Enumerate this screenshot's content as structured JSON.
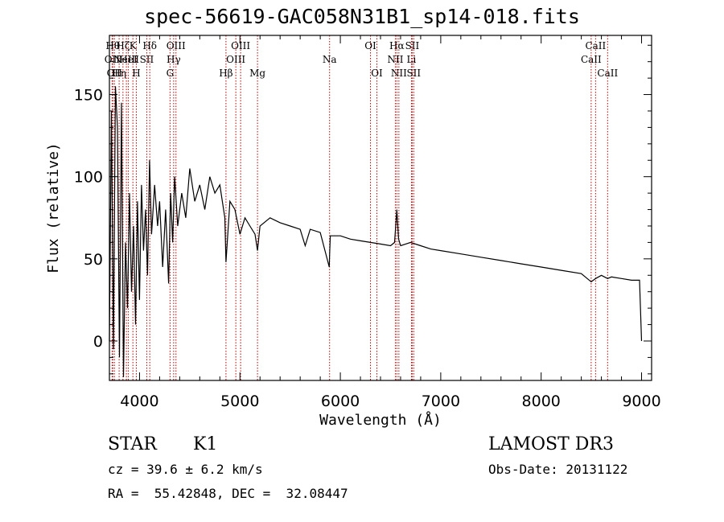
{
  "chart_data": {
    "type": "line",
    "title": "spec-56619-GAC058N31B1_sp14-018.fits",
    "xlabel": "Wavelength (Å)",
    "ylabel": "Flux (relative)",
    "xlim": [
      3700,
      9100
    ],
    "ylim": [
      -24,
      186
    ],
    "x_ticks": [
      4000,
      5000,
      6000,
      7000,
      8000,
      9000
    ],
    "y_ticks": [
      0,
      50,
      100,
      150
    ],
    "grid": false,
    "series": [
      {
        "name": "spectrum",
        "x": [
          3700,
          3720,
          3740,
          3760,
          3780,
          3800,
          3820,
          3840,
          3860,
          3880,
          3900,
          3920,
          3940,
          3960,
          3980,
          4000,
          4020,
          4040,
          4060,
          4080,
          4100,
          4120,
          4150,
          4180,
          4200,
          4230,
          4260,
          4290,
          4310,
          4330,
          4350,
          4380,
          4420,
          4460,
          4500,
          4550,
          4600,
          4650,
          4700,
          4750,
          4800,
          4850,
          4861,
          4900,
          4950,
          5000,
          5050,
          5100,
          5150,
          5175,
          5200,
          5300,
          5400,
          5500,
          5600,
          5650,
          5700,
          5800,
          5890,
          5893,
          5900,
          6000,
          6100,
          6200,
          6300,
          6400,
          6500,
          6540,
          6563,
          6580,
          6600,
          6700,
          6800,
          6900,
          7000,
          7200,
          7400,
          7600,
          7800,
          8000,
          8200,
          8400,
          8498,
          8542,
          8600,
          8662,
          8700,
          8800,
          8900,
          8980,
          9000
        ],
        "values": [
          0,
          140,
          -5,
          155,
          130,
          -10,
          145,
          -22,
          60,
          20,
          90,
          30,
          70,
          10,
          85,
          25,
          95,
          55,
          80,
          40,
          110,
          65,
          95,
          70,
          85,
          45,
          80,
          35,
          90,
          60,
          100,
          70,
          90,
          75,
          105,
          85,
          95,
          80,
          100,
          90,
          95,
          75,
          48,
          85,
          80,
          65,
          75,
          70,
          65,
          55,
          70,
          75,
          72,
          70,
          68,
          58,
          68,
          66,
          45,
          52,
          64,
          64,
          62,
          61,
          60,
          59,
          58,
          60,
          80,
          62,
          58,
          60,
          58,
          56,
          55,
          53,
          51,
          49,
          47,
          45,
          43,
          41,
          36,
          38,
          40,
          38,
          39,
          38,
          37,
          37,
          0
        ]
      }
    ],
    "lines": [
      {
        "wl": 3727,
        "label": "OII",
        "tier": 1
      },
      {
        "wl": 3734,
        "label": "Hθ",
        "tier": 0
      },
      {
        "wl": 3750,
        "label": "OII",
        "tier": 2
      },
      {
        "wl": 3797,
        "label": "Hη",
        "tier": 2
      },
      {
        "wl": 3835,
        "label": "Hζ",
        "tier": 0
      },
      {
        "wl": 3869,
        "label": "NeIII",
        "tier": 1
      },
      {
        "wl": 3889,
        "label": "HeI",
        "tier": 1
      },
      {
        "wl": 3934,
        "label": "K",
        "tier": 0
      },
      {
        "wl": 3968,
        "label": "H",
        "tier": 2
      },
      {
        "wl": 4072,
        "label": "SII",
        "tier": 1
      },
      {
        "wl": 4102,
        "label": "Hδ",
        "tier": 0
      },
      {
        "wl": 4304,
        "label": "G",
        "tier": 2
      },
      {
        "wl": 4340,
        "label": "Hγ",
        "tier": 1
      },
      {
        "wl": 4363,
        "label": "OIII",
        "tier": 0
      },
      {
        "wl": 4861,
        "label": "Hβ",
        "tier": 2
      },
      {
        "wl": 4959,
        "label": "OIII",
        "tier": 1
      },
      {
        "wl": 5007,
        "label": "OIII",
        "tier": 0
      },
      {
        "wl": 5175,
        "label": "Mg",
        "tier": 2
      },
      {
        "wl": 5893,
        "label": "Na",
        "tier": 1
      },
      {
        "wl": 6300,
        "label": "OI",
        "tier": 0
      },
      {
        "wl": 6364,
        "label": "OI",
        "tier": 2
      },
      {
        "wl": 6548,
        "label": "NII",
        "tier": 1
      },
      {
        "wl": 6563,
        "label": "Hα",
        "tier": 0
      },
      {
        "wl": 6583,
        "label": "NII",
        "tier": 2
      },
      {
        "wl": 6708,
        "label": "Li",
        "tier": 1
      },
      {
        "wl": 6716,
        "label": "SII",
        "tier": 0
      },
      {
        "wl": 6731,
        "label": "SII",
        "tier": 2
      },
      {
        "wl": 8498,
        "label": "CaII",
        "tier": 1
      },
      {
        "wl": 8542,
        "label": "CaII",
        "tier": 0
      },
      {
        "wl": 8662,
        "label": "CaII",
        "tier": 2
      }
    ]
  },
  "info": {
    "class": "STAR",
    "subclass": "K1",
    "cz": "cz = 39.6 ± 6.2 km/s",
    "survey": "LAMOST DR3",
    "obs_date": "Obs-Date: 20131122",
    "coords": "RA =  55.42848, DEC =  32.08447"
  }
}
